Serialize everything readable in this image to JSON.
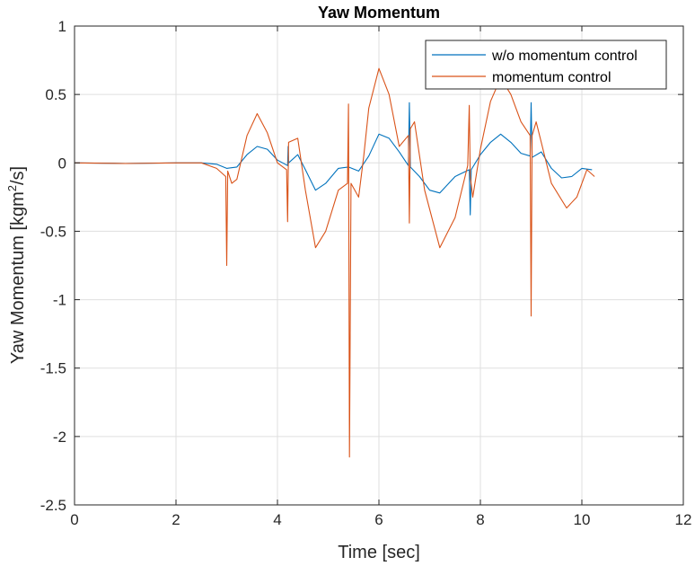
{
  "chart_data": {
    "type": "line",
    "title": "Yaw Momentum",
    "xlabel": "Time [sec]",
    "ylabel_main": "Yaw Momentum [kgm",
    "ylabel_sup": "2",
    "ylabel_end": "/s]",
    "xlim": [
      0,
      12
    ],
    "ylim": [
      -2.5,
      1
    ],
    "xticks": [
      0,
      2,
      4,
      6,
      8,
      10,
      12
    ],
    "yticks": [
      1,
      0.5,
      0,
      -0.5,
      -1,
      -1.5,
      -2,
      -2.5
    ],
    "xtick_labels": [
      "0",
      "2",
      "4",
      "6",
      "8",
      "10",
      "12"
    ],
    "ytick_labels": [
      "1",
      "0.5",
      "0",
      "-0.5",
      "-1",
      "-1.5",
      "-2",
      "-2.5"
    ],
    "grid": true,
    "legend_position": "top-right",
    "series": [
      {
        "name": "w/o momentum control",
        "color": "#0072BD",
        "points": [
          [
            0,
            0
          ],
          [
            1,
            -0.005
          ],
          [
            2,
            0
          ],
          [
            2.5,
            0
          ],
          [
            2.8,
            -0.01
          ],
          [
            3.0,
            -0.04
          ],
          [
            3.2,
            -0.03
          ],
          [
            3.4,
            0.06
          ],
          [
            3.6,
            0.12
          ],
          [
            3.8,
            0.1
          ],
          [
            4.0,
            0.02
          ],
          [
            4.2,
            -0.02
          ],
          [
            4.21,
            0.12
          ],
          [
            4.22,
            0.0
          ],
          [
            4.4,
            0.06
          ],
          [
            4.55,
            -0.05
          ],
          [
            4.75,
            -0.2
          ],
          [
            4.95,
            -0.15
          ],
          [
            5.2,
            -0.04
          ],
          [
            5.4,
            -0.03
          ],
          [
            5.6,
            -0.06
          ],
          [
            5.8,
            0.05
          ],
          [
            6.0,
            0.21
          ],
          [
            6.2,
            0.18
          ],
          [
            6.4,
            0.08
          ],
          [
            6.58,
            -0.02
          ],
          [
            6.6,
            0.44
          ],
          [
            6.62,
            -0.03
          ],
          [
            6.8,
            -0.1
          ],
          [
            7.0,
            -0.2
          ],
          [
            7.2,
            -0.22
          ],
          [
            7.5,
            -0.1
          ],
          [
            7.78,
            -0.05
          ],
          [
            7.8,
            -0.38
          ],
          [
            7.82,
            -0.05
          ],
          [
            8.0,
            0.06
          ],
          [
            8.2,
            0.15
          ],
          [
            8.4,
            0.21
          ],
          [
            8.6,
            0.15
          ],
          [
            8.8,
            0.07
          ],
          [
            8.98,
            0.05
          ],
          [
            9.0,
            0.44
          ],
          [
            9.02,
            0.04
          ],
          [
            9.2,
            0.08
          ],
          [
            9.4,
            -0.04
          ],
          [
            9.6,
            -0.11
          ],
          [
            9.8,
            -0.1
          ],
          [
            10.0,
            -0.04
          ],
          [
            10.2,
            -0.05
          ]
        ]
      },
      {
        "name": "momentum control",
        "color": "#D95319",
        "points": [
          [
            0,
            0
          ],
          [
            1,
            -0.005
          ],
          [
            2,
            0
          ],
          [
            2.5,
            0
          ],
          [
            2.8,
            -0.04
          ],
          [
            2.98,
            -0.1
          ],
          [
            3.0,
            -0.75
          ],
          [
            3.02,
            -0.06
          ],
          [
            3.1,
            -0.15
          ],
          [
            3.2,
            -0.12
          ],
          [
            3.4,
            0.2
          ],
          [
            3.6,
            0.36
          ],
          [
            3.8,
            0.22
          ],
          [
            4.0,
            0.0
          ],
          [
            4.18,
            -0.05
          ],
          [
            4.2,
            -0.43
          ],
          [
            4.22,
            0.15
          ],
          [
            4.4,
            0.18
          ],
          [
            4.55,
            -0.2
          ],
          [
            4.75,
            -0.62
          ],
          [
            4.95,
            -0.5
          ],
          [
            5.2,
            -0.2
          ],
          [
            5.38,
            -0.15
          ],
          [
            5.4,
            0.43
          ],
          [
            5.42,
            -2.15
          ],
          [
            5.45,
            -0.15
          ],
          [
            5.6,
            -0.25
          ],
          [
            5.7,
            0.05
          ],
          [
            5.8,
            0.4
          ],
          [
            6.0,
            0.69
          ],
          [
            6.2,
            0.5
          ],
          [
            6.4,
            0.12
          ],
          [
            6.58,
            0.2
          ],
          [
            6.6,
            -0.44
          ],
          [
            6.62,
            0.25
          ],
          [
            6.7,
            0.3
          ],
          [
            6.9,
            -0.2
          ],
          [
            7.2,
            -0.62
          ],
          [
            7.5,
            -0.4
          ],
          [
            7.75,
            -0.02
          ],
          [
            7.78,
            0.42
          ],
          [
            7.8,
            -0.1
          ],
          [
            7.85,
            -0.25
          ],
          [
            8.0,
            0.1
          ],
          [
            8.2,
            0.45
          ],
          [
            8.4,
            0.62
          ],
          [
            8.6,
            0.5
          ],
          [
            8.8,
            0.3
          ],
          [
            8.98,
            0.2
          ],
          [
            9.0,
            -1.12
          ],
          [
            9.02,
            0.2
          ],
          [
            9.1,
            0.3
          ],
          [
            9.2,
            0.15
          ],
          [
            9.4,
            -0.15
          ],
          [
            9.7,
            -0.33
          ],
          [
            9.9,
            -0.25
          ],
          [
            10.1,
            -0.05
          ],
          [
            10.25,
            -0.1
          ]
        ]
      }
    ]
  }
}
